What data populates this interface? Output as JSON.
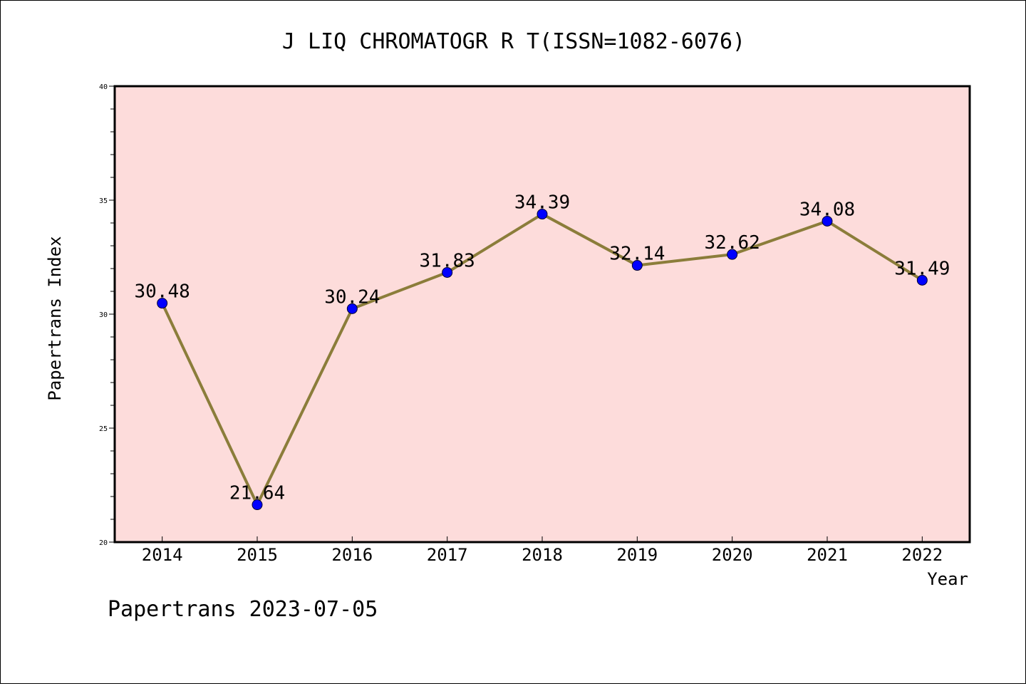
{
  "chart_data": {
    "type": "line",
    "title": "J LIQ CHROMATOGR R T(ISSN=1082-6076)",
    "xlabel": "Year",
    "ylabel": "Papertrans Index",
    "categories": [
      "2014",
      "2015",
      "2016",
      "2017",
      "2018",
      "2019",
      "2020",
      "2021",
      "2022"
    ],
    "series": [
      {
        "values": [
          30.48,
          21.64,
          30.24,
          31.83,
          34.39,
          32.14,
          32.62,
          34.08,
          31.49
        ],
        "data_labels": [
          "30.48",
          "21.64",
          "30.24",
          "31.83",
          "34.39",
          "32.14",
          "32.62",
          "34.08",
          "31.49"
        ]
      }
    ],
    "ylim": [
      20,
      40
    ],
    "yticks": [
      "20",
      "25",
      "30",
      "35",
      "40"
    ],
    "grid": false,
    "colors": {
      "plot_background": "#fddcdb",
      "line": "#8b7d3a",
      "marker": "#0000ff"
    }
  },
  "footer": {
    "text": "Papertrans 2023-07-05"
  }
}
